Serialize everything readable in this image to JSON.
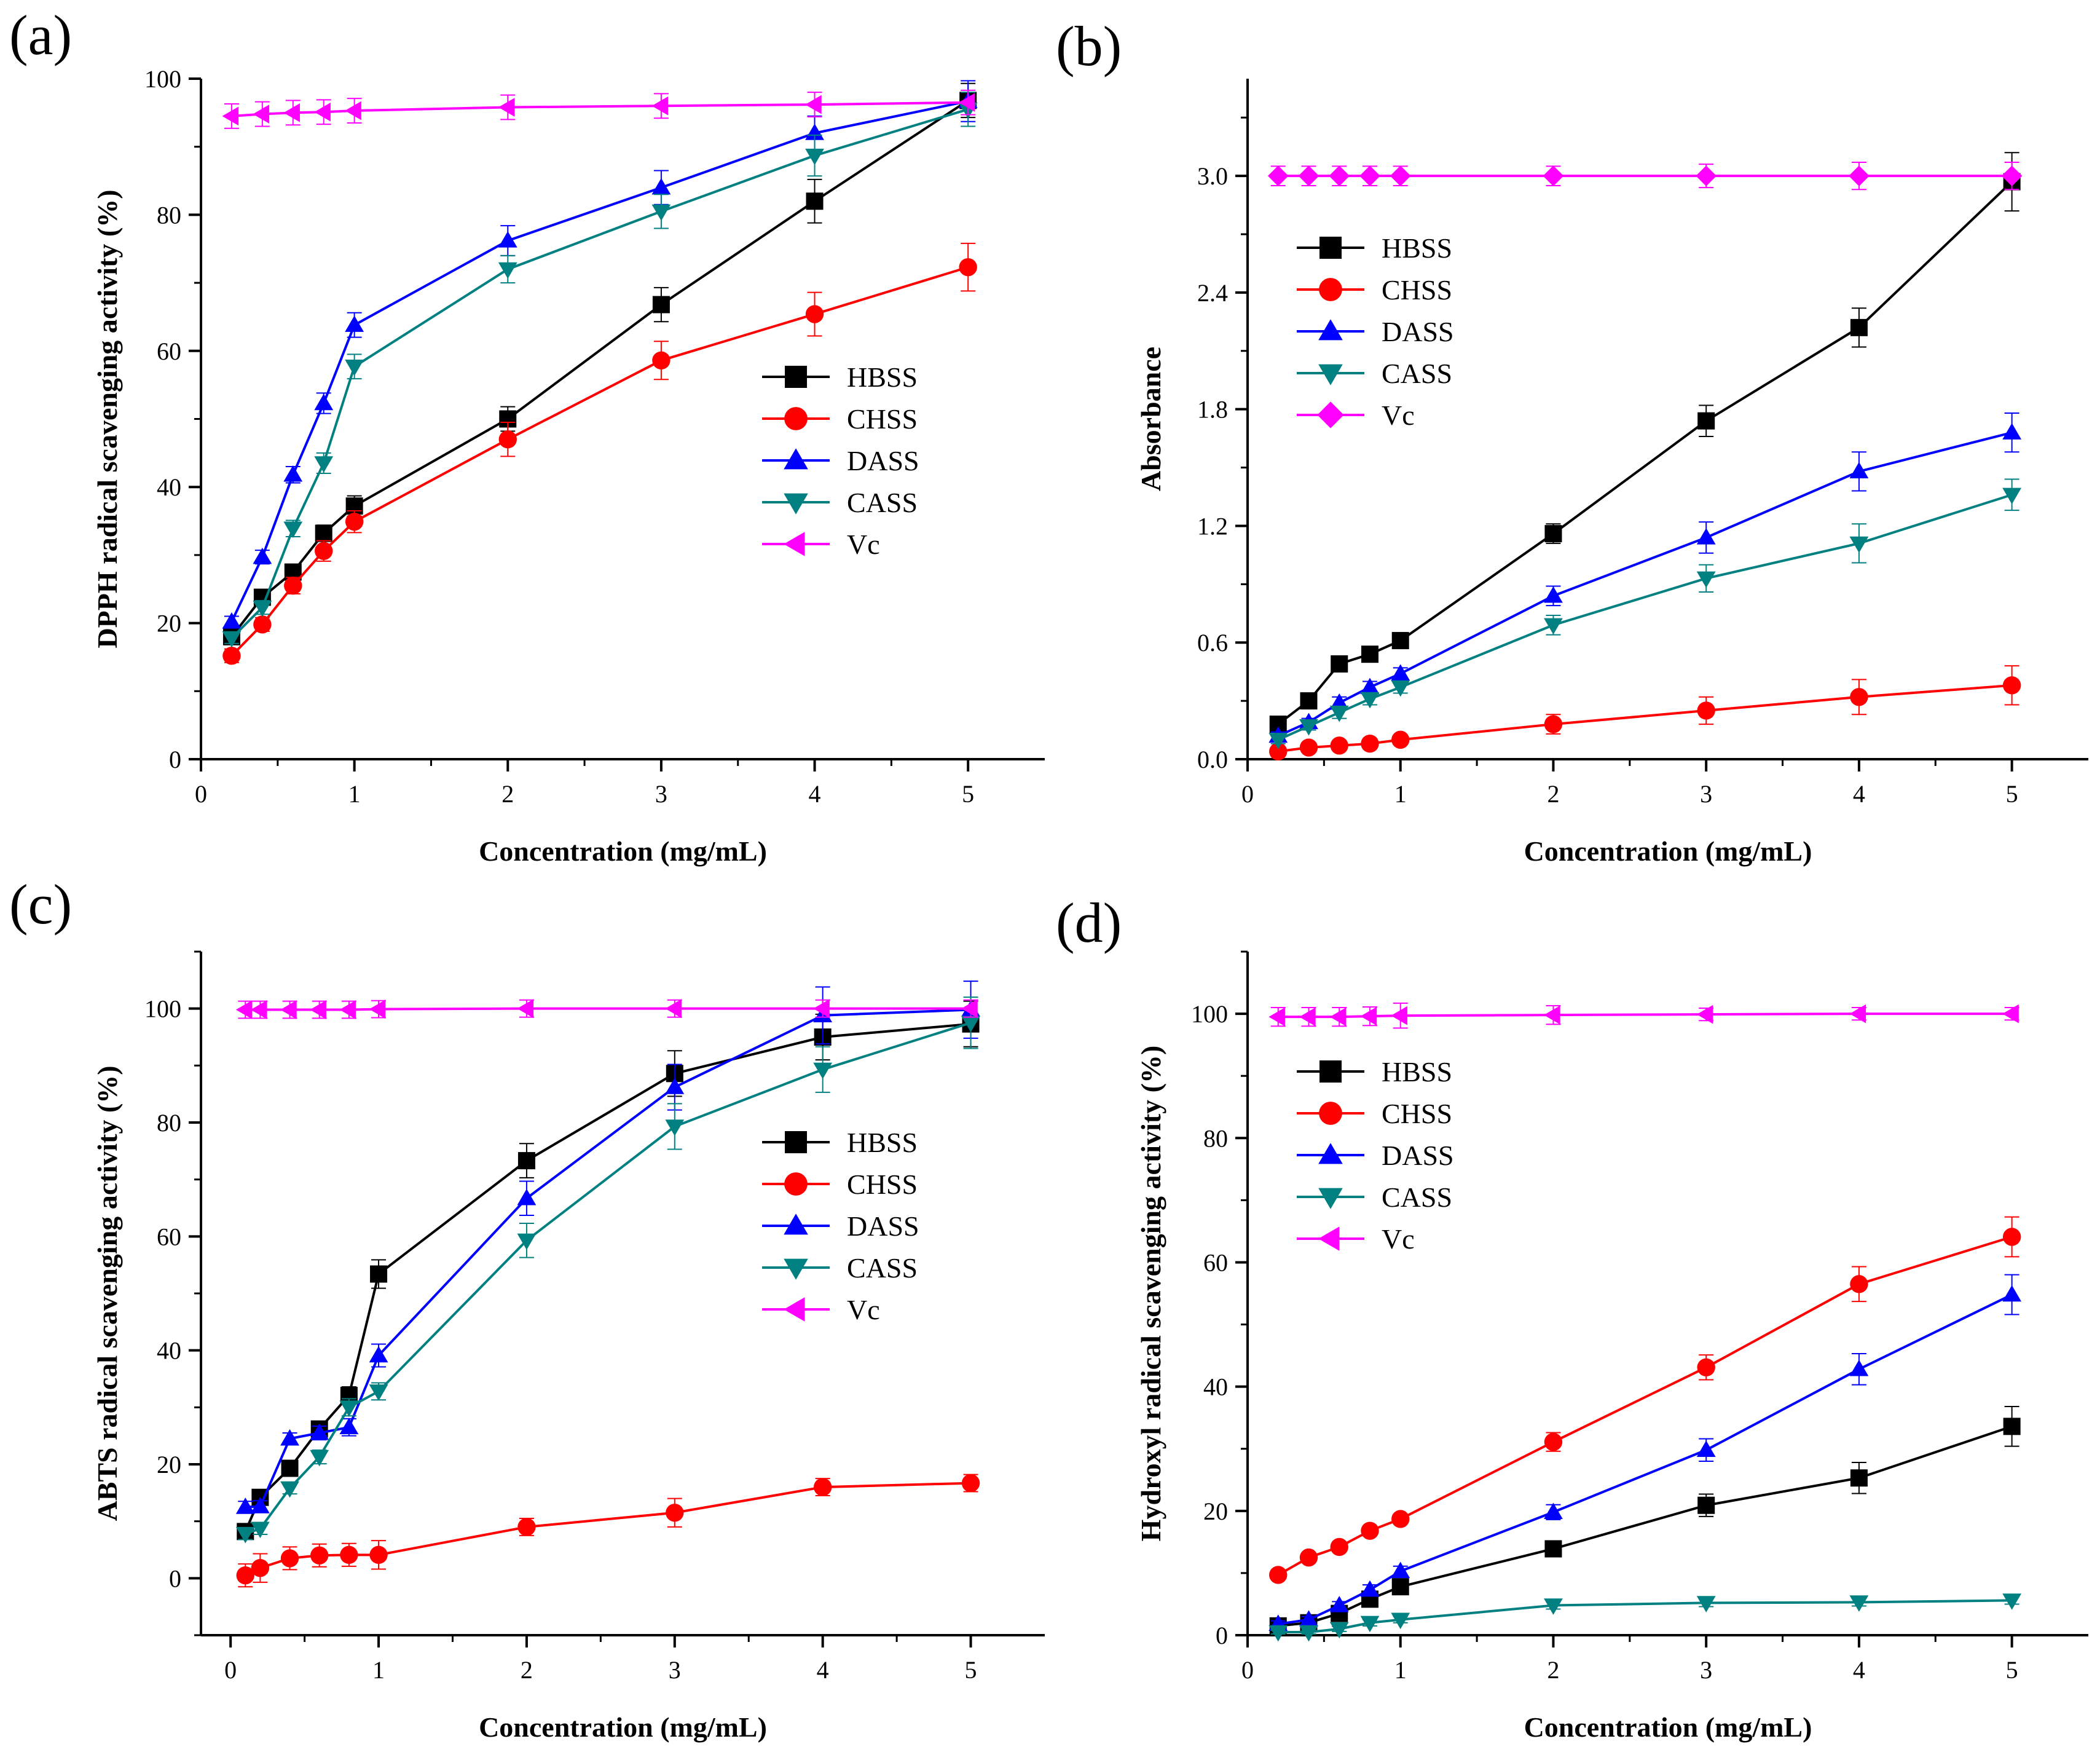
{
  "chart_data": [
    {
      "type": "line",
      "panel_label": "(a)",
      "xlabel": "Concentration (mg/mL)",
      "ylabel": "DPPH radical scavenging activity (%)",
      "xlim": [
        0,
        5.5
      ],
      "ylim": [
        0,
        100
      ],
      "xticks": [
        0,
        1,
        2,
        3,
        4,
        5
      ],
      "yticks": [
        0,
        20,
        40,
        60,
        80,
        100
      ],
      "xtick_labels": [
        "0",
        "1",
        "2",
        "3",
        "4",
        "5"
      ],
      "ytick_labels": [
        "0",
        "20",
        "40",
        "60",
        "80",
        "100"
      ],
      "legend_position": "center-right",
      "x": [
        0.2,
        0.4,
        0.6,
        0.8,
        1,
        2,
        3,
        4,
        5
      ],
      "series": [
        {
          "name": "HBSS",
          "marker": "square",
          "color": "#000000",
          "values": [
            18,
            23.8,
            27.5,
            33.2,
            37.2,
            50,
            66.8,
            82,
            96.8
          ],
          "errors": [
            1,
            1,
            1,
            1.2,
            1.5,
            1.8,
            2.5,
            3.2,
            2.5
          ]
        },
        {
          "name": "CHSS",
          "marker": "circle",
          "color": "#ff0000",
          "values": [
            15.2,
            19.8,
            25.5,
            30.6,
            34.9,
            47,
            58.6,
            65.4,
            72.3
          ],
          "errors": [
            1,
            1,
            1.2,
            1.5,
            1.6,
            2.5,
            2.8,
            3.2,
            3.5
          ]
        },
        {
          "name": "DASS",
          "marker": "triangle-up",
          "color": "#0000ff",
          "values": [
            20.2,
            29.7,
            41.8,
            52.3,
            63.8,
            76.2,
            84,
            92,
            96.7
          ],
          "errors": [
            0.8,
            1,
            1.2,
            1.5,
            1.8,
            2.2,
            2.5,
            2.5,
            3
          ]
        },
        {
          "name": "CASS",
          "marker": "triangle-down",
          "color": "#008080",
          "values": [
            17.8,
            22.3,
            33.9,
            43.5,
            57.7,
            72,
            80.5,
            88.7,
            95.5
          ],
          "errors": [
            0.8,
            1,
            1.2,
            1.5,
            1.8,
            2,
            2.5,
            3,
            2.5
          ]
        },
        {
          "name": "Vc",
          "marker": "triangle-left",
          "color": "#ff00ff",
          "values": [
            94.5,
            94.8,
            95,
            95.1,
            95.3,
            95.8,
            96,
            96.2,
            96.5
          ],
          "errors": [
            1.8,
            1.8,
            1.8,
            1.8,
            1.8,
            1.8,
            1.8,
            1.8,
            1.8
          ]
        }
      ]
    },
    {
      "type": "line",
      "panel_label": "(b)",
      "xlabel": "Concentration (mg/mL)",
      "ylabel": "Absorbance",
      "xlim": [
        0,
        5.5
      ],
      "ylim": [
        0,
        3.5
      ],
      "xticks": [
        0,
        1,
        2,
        3,
        4,
        5
      ],
      "yticks": [
        0,
        0.6,
        1.2,
        1.8,
        2.4,
        3.0
      ],
      "xtick_labels": [
        "0",
        "1",
        "2",
        "3",
        "4",
        "5"
      ],
      "ytick_labels": [
        "0.0",
        "0.6",
        "1.2",
        "1.8",
        "2.4",
        "3.0"
      ],
      "legend_position": "upper-left",
      "x": [
        0.2,
        0.4,
        0.6,
        0.8,
        1,
        2,
        3,
        4,
        5
      ],
      "series": [
        {
          "name": "HBSS",
          "marker": "square",
          "color": "#000000",
          "values": [
            0.18,
            0.3,
            0.49,
            0.54,
            0.61,
            1.16,
            1.74,
            2.22,
            2.97
          ],
          "errors": [
            0.02,
            0.02,
            0.02,
            0.02,
            0.03,
            0.05,
            0.08,
            0.1,
            0.15
          ]
        },
        {
          "name": "CHSS",
          "marker": "circle",
          "color": "#ff0000",
          "values": [
            0.04,
            0.06,
            0.07,
            0.08,
            0.1,
            0.18,
            0.25,
            0.32,
            0.38
          ],
          "errors": [
            0.01,
            0.01,
            0.02,
            0.02,
            0.02,
            0.05,
            0.07,
            0.09,
            0.1
          ]
        },
        {
          "name": "DASS",
          "marker": "triangle-up",
          "color": "#0000ff",
          "values": [
            0.12,
            0.19,
            0.29,
            0.37,
            0.44,
            0.84,
            1.14,
            1.48,
            1.68
          ],
          "errors": [
            0.02,
            0.02,
            0.03,
            0.03,
            0.03,
            0.05,
            0.08,
            0.1,
            0.1
          ]
        },
        {
          "name": "CASS",
          "marker": "triangle-down",
          "color": "#008080",
          "values": [
            0.1,
            0.17,
            0.24,
            0.31,
            0.37,
            0.69,
            0.93,
            1.11,
            1.36
          ],
          "errors": [
            0.02,
            0.02,
            0.03,
            0.03,
            0.03,
            0.05,
            0.07,
            0.1,
            0.08
          ]
        },
        {
          "name": "Vc",
          "marker": "diamond",
          "color": "#ff00ff",
          "values": [
            3.0,
            3.0,
            3.0,
            3.0,
            3.0,
            3.0,
            3.0,
            3.0,
            3.0
          ],
          "errors": [
            0.05,
            0.05,
            0.05,
            0.05,
            0.05,
            0.05,
            0.06,
            0.07,
            0.07
          ]
        }
      ]
    },
    {
      "type": "line",
      "panel_label": "(c)",
      "xlabel": "Concentration (mg/mL)",
      "ylabel": "ABTS radical scavenging activity (%)",
      "xlim": [
        -0.2,
        5.5
      ],
      "ylim": [
        -10,
        110
      ],
      "xticks": [
        0,
        1,
        2,
        3,
        4,
        5
      ],
      "yticks": [
        0,
        20,
        40,
        60,
        80,
        100
      ],
      "xtick_labels": [
        "0",
        "1",
        "2",
        "3",
        "4",
        "5"
      ],
      "ytick_labels": [
        "0",
        "20",
        "40",
        "60",
        "80",
        "100"
      ],
      "legend_position": "center-right",
      "x": [
        0.1,
        0.2,
        0.4,
        0.6,
        0.8,
        1,
        2,
        3,
        4,
        5
      ],
      "series": [
        {
          "name": "HBSS",
          "marker": "square",
          "color": "#000000",
          "values": [
            8.2,
            14.2,
            19.3,
            26.2,
            32.1,
            53.4,
            73.3,
            88.6,
            95,
            97.3
          ],
          "errors": [
            1,
            1,
            1,
            1.2,
            1.5,
            2.5,
            3,
            4,
            4,
            4
          ]
        },
        {
          "name": "CHSS",
          "marker": "circle",
          "color": "#ff0000",
          "values": [
            0.5,
            1.8,
            3.5,
            4,
            4.1,
            4.1,
            9,
            11.5,
            16,
            16.7
          ],
          "errors": [
            2,
            2.5,
            2,
            2,
            2,
            2.5,
            1.5,
            2.5,
            1.5,
            1.5
          ]
        },
        {
          "name": "DASS",
          "marker": "triangle-up",
          "color": "#0000ff",
          "values": [
            12.5,
            12.6,
            24.5,
            25.5,
            26.5,
            39.1,
            66.7,
            86.2,
            98.8,
            99.8
          ],
          "errors": [
            1,
            1,
            1,
            1.2,
            1.5,
            2,
            3,
            4,
            5,
            5
          ]
        },
        {
          "name": "CASS",
          "marker": "triangle-down",
          "color": "#008080",
          "values": [
            7.8,
            8.7,
            15.8,
            21.3,
            30,
            32.8,
            59.3,
            79.3,
            89.3,
            97.5
          ],
          "errors": [
            1,
            1,
            1,
            1.2,
            1.5,
            1.5,
            3,
            4,
            4,
            4.5
          ]
        },
        {
          "name": "Vc",
          "marker": "triangle-left",
          "color": "#ff00ff",
          "values": [
            99.8,
            99.8,
            99.8,
            99.8,
            99.8,
            99.9,
            100,
            100,
            100,
            100
          ],
          "errors": [
            1.5,
            1.5,
            1.5,
            1.5,
            1.5,
            1.5,
            1.5,
            1.5,
            1.5,
            1.5
          ]
        }
      ]
    },
    {
      "type": "line",
      "panel_label": "(d)",
      "xlabel": "Concentration (mg/mL)",
      "ylabel": "Hydroxyl radical scavenging activity (%)",
      "xlim": [
        0,
        5.5
      ],
      "ylim": [
        0,
        110
      ],
      "xticks": [
        0,
        1,
        2,
        3,
        4,
        5
      ],
      "yticks": [
        0,
        20,
        40,
        60,
        80,
        100
      ],
      "xtick_labels": [
        "0",
        "1",
        "2",
        "3",
        "4",
        "5"
      ],
      "ytick_labels": [
        "0",
        "20",
        "40",
        "60",
        "80",
        "100"
      ],
      "legend_position": "upper-left",
      "x": [
        0.2,
        0.4,
        0.6,
        0.8,
        1,
        2,
        3,
        4,
        5
      ],
      "series": [
        {
          "name": "HBSS",
          "marker": "square",
          "color": "#000000",
          "values": [
            1.5,
            2,
            3.5,
            5.8,
            7.8,
            13.9,
            20.9,
            25.3,
            33.6
          ],
          "errors": [
            0.5,
            0.5,
            0.5,
            0.8,
            1,
            1.2,
            1.8,
            2.5,
            3.2
          ]
        },
        {
          "name": "CHSS",
          "marker": "circle",
          "color": "#ff0000",
          "values": [
            9.7,
            12.5,
            14.2,
            16.8,
            18.7,
            31.1,
            43.1,
            56.5,
            64.1
          ],
          "errors": [
            0.5,
            0.5,
            0.5,
            0.6,
            0.7,
            1.5,
            2,
            2.8,
            3.2
          ]
        },
        {
          "name": "DASS",
          "marker": "triangle-up",
          "color": "#0000ff",
          "values": [
            1.8,
            2.5,
            4.8,
            7.3,
            10.3,
            19.8,
            29.8,
            42.8,
            54.8
          ],
          "errors": [
            0.5,
            0.5,
            0.6,
            0.8,
            0.8,
            1.2,
            1.8,
            2.5,
            3.2
          ]
        },
        {
          "name": "CASS",
          "marker": "triangle-down",
          "color": "#008080",
          "values": [
            0.5,
            0.5,
            1,
            2,
            2.5,
            4.8,
            5.2,
            5.3,
            5.6
          ],
          "errors": [
            0.3,
            0.3,
            0.4,
            0.5,
            0.5,
            0.6,
            0.6,
            0.6,
            0.6
          ]
        },
        {
          "name": "Vc",
          "marker": "triangle-left",
          "color": "#ff00ff",
          "values": [
            99.5,
            99.5,
            99.5,
            99.6,
            99.7,
            99.8,
            99.9,
            100,
            100
          ],
          "errors": [
            1.5,
            1.5,
            1.5,
            1.5,
            2,
            1.5,
            1,
            1,
            1
          ]
        }
      ]
    }
  ]
}
